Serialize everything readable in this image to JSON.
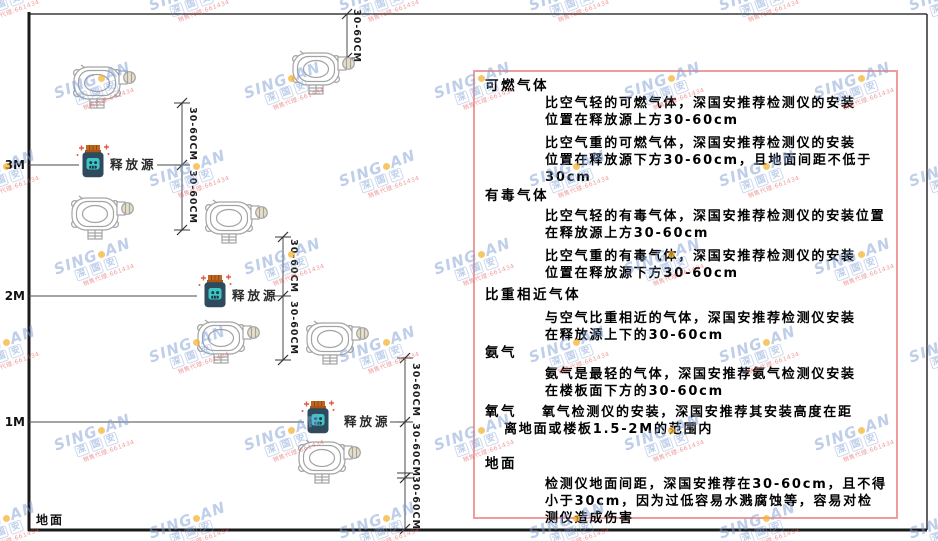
{
  "watermark": {
    "brand_left": "SING",
    "brand_right": "AN",
    "sub": "深国安",
    "contact": "销售代理:661434"
  },
  "diagram": {
    "heights": [
      "3M",
      "2M",
      "1M"
    ],
    "ground_label": "地面",
    "source_label": "释放源",
    "dim_label": "30-60CM"
  },
  "panel": {
    "sections": [
      {
        "heading": "可燃气体",
        "paragraphs": [
          {
            "lines": [
              "比空气轻的可燃气体，深国安推荐检测仪的安装",
              "位置在释放源上方30-60cm"
            ]
          },
          {
            "lines": [
              "比空气重的可燃气体，深国安推荐检测仪的安装",
              "位置在释放源下方30-60cm，且地面间距不低于",
              "30cm"
            ]
          }
        ]
      },
      {
        "heading": "有毒气体",
        "paragraphs": [
          {
            "lines": [
              "比空气轻的有毒气体，深国安推荐检测仪的安装位置",
              "在释放源上方30-60cm"
            ]
          },
          {
            "lines": [
              "比空气重的有毒气体，深国安推荐检测仪的安装",
              "位置在释放源下方30-60cm"
            ]
          }
        ]
      },
      {
        "heading": "比重相近气体",
        "paragraphs": [
          {
            "lines": [
              "与空气比重相近的气体，深国安推荐检测仪安装",
              "在释放源上下的30-60cm"
            ]
          }
        ]
      },
      {
        "heading": "氨气",
        "paragraphs": [
          {
            "lines": [
              "氨气是最轻的气体，深国安推荐氨气检测仪安装",
              "在楼板面下方的30-60cm"
            ]
          }
        ]
      },
      {
        "heading": "氧气",
        "paragraphs": [
          {
            "lines": [
              "氧气检测仪的安装，深国安推荐其安装高度在距",
              "离地面或楼板1.5-2M的范围内"
            ]
          }
        ]
      },
      {
        "heading": "地面",
        "paragraphs": [
          {
            "lines": [
              "检测仪地面间距，深国安推荐在30-60cm，且不得",
              "小于30cm，因为过低容易水溅腐蚀等，容易对检",
              "测仪造成伤害"
            ]
          }
        ]
      }
    ]
  }
}
